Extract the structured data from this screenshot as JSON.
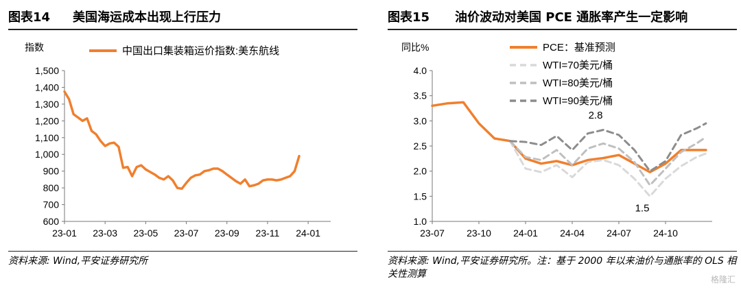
{
  "charts": [
    {
      "fig_no": "图表14",
      "title": "美国海运成本出现上行压力",
      "source": "资料来源: Wind,平安证券研究所",
      "y_unit_label": "指数",
      "chart_data": {
        "type": "line",
        "title": "美国海运成本出现上行压力",
        "ylabel": "指数",
        "ylim": [
          600,
          1500
        ],
        "yticks": [
          "600",
          "700",
          "800",
          "900",
          "1,000",
          "1,100",
          "1,200",
          "1,300",
          "1,400",
          "1,500"
        ],
        "ytick_values": [
          600,
          700,
          800,
          900,
          1000,
          1100,
          1200,
          1300,
          1400,
          1500
        ],
        "xticks": [
          "23-01",
          "23-03",
          "23-05",
          "23-07",
          "23-09",
          "23-11",
          "24-01"
        ],
        "xtick_pos": [
          0,
          9,
          18,
          27,
          36,
          45,
          54
        ],
        "legend_position": "top",
        "grid": false,
        "series": [
          {
            "name": "中国出口集装箱运价指数:美东航线",
            "color": "#f07f2d",
            "style": "solid",
            "values": [
              1375,
              1330,
              1240,
              1220,
              1200,
              1215,
              1140,
              1120,
              1080,
              1050,
              1065,
              1070,
              1045,
              920,
              925,
              870,
              925,
              935,
              910,
              895,
              880,
              860,
              850,
              870,
              845,
              800,
              795,
              830,
              860,
              875,
              880,
              900,
              905,
              915,
              915,
              900,
              880,
              860,
              840,
              825,
              850,
              810,
              815,
              825,
              845,
              850,
              850,
              845,
              850,
              860,
              870,
              900,
              990
            ]
          }
        ]
      }
    },
    {
      "fig_no": "图表15",
      "title": "油价波动对美国 PCE 通胀率产生一定影响",
      "source": "资料来源: Wind,平安证券研究所。注：基于 2000 年以来油价与通胀率的 OLS 相关性测算",
      "y_unit_label": "同比%",
      "chart_data": {
        "type": "line",
        "title": "油价波动对美国 PCE 通胀率产生一定影响",
        "ylabel": "同比%",
        "ylim": [
          1.0,
          4.0
        ],
        "yticks": [
          "1.0",
          "1.5",
          "2.0",
          "2.5",
          "3.0",
          "3.5",
          "4.0"
        ],
        "ytick_values": [
          1.0,
          1.5,
          2.0,
          2.5,
          3.0,
          3.5,
          4.0
        ],
        "xticks": [
          "23-07",
          "23-10",
          "24-01",
          "24-04",
          "24-07",
          "24-10"
        ],
        "xtick_pos": [
          0,
          3,
          6,
          9,
          12,
          15
        ],
        "legend_position": "top",
        "grid": false,
        "annotations": [
          {
            "text": "2.8",
            "x": 10.5,
            "y": 2.8,
            "dy": -18
          },
          {
            "text": "1.5",
            "x": 13.5,
            "y": 1.5,
            "dy": 22
          }
        ],
        "series": [
          {
            "name": "PCE：基准预测",
            "color": "#f07f2d",
            "style": "solid",
            "x": [
              0,
              1,
              2,
              3,
              4,
              5,
              6,
              7,
              8,
              9,
              10,
              11,
              12,
              13,
              14,
              15,
              16,
              17,
              17.6
            ],
            "values": [
              3.3,
              3.35,
              3.37,
              2.95,
              2.65,
              2.6,
              2.25,
              2.15,
              2.2,
              2.12,
              2.22,
              2.26,
              2.32,
              2.15,
              1.98,
              2.15,
              2.42,
              2.42,
              2.42
            ]
          },
          {
            "name": "WTI=70美元/桶",
            "color": "#d9d9d9",
            "style": "dashed",
            "x": [
              5,
              6,
              7,
              8,
              9,
              10,
              11,
              12,
              13,
              14,
              15,
              16,
              17,
              17.6
            ],
            "values": [
              2.6,
              2.05,
              1.98,
              2.12,
              1.88,
              2.18,
              2.22,
              2.12,
              1.85,
              1.5,
              1.85,
              2.1,
              2.28,
              2.35
            ]
          },
          {
            "name": "WTI=80美元/桶",
            "color": "#bfbfbf",
            "style": "dashed",
            "x": [
              5,
              6,
              7,
              8,
              9,
              10,
              11,
              12,
              13,
              14,
              15,
              16,
              17,
              17.6
            ],
            "values": [
              2.6,
              2.28,
              2.22,
              2.42,
              2.12,
              2.45,
              2.55,
              2.45,
              2.18,
              1.72,
              2.05,
              2.38,
              2.55,
              2.68
            ]
          },
          {
            "name": "WTI=90美元/桶",
            "color": "#8c8c8c",
            "style": "dashed",
            "x": [
              5,
              6,
              7,
              8,
              9,
              10,
              11,
              12,
              13,
              14,
              15,
              16,
              17,
              17.6
            ],
            "values": [
              2.6,
              2.58,
              2.52,
              2.7,
              2.42,
              2.75,
              2.82,
              2.72,
              2.42,
              2.0,
              2.2,
              2.72,
              2.85,
              2.95
            ]
          }
        ]
      }
    }
  ],
  "watermark": "格隆汇"
}
